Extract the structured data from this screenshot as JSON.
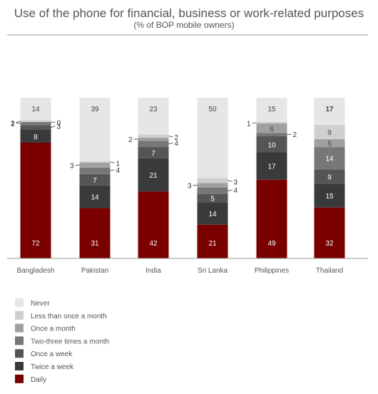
{
  "chart_data": {
    "type": "bar",
    "stacked": true,
    "title": "Use of the phone for financial, business or work-related purposes",
    "subtitle": "(% of BOP mobile owners)",
    "categories": [
      "Bangladesh",
      "Pakistan",
      "India",
      "Sri Lanka",
      "Philippines",
      "Thailand"
    ],
    "ylim": [
      0,
      100
    ],
    "grid": false,
    "legend_position": "bottom-left",
    "series": [
      {
        "name": "Daily",
        "color": "#7a0000",
        "values": [
          72,
          31,
          42,
          21,
          49,
          32
        ]
      },
      {
        "name": "Twice a week",
        "color": "#3a3a3a",
        "values": [
          8,
          14,
          21,
          14,
          17,
          15
        ]
      },
      {
        "name": "Once a week",
        "color": "#555555",
        "values": [
          3,
          7,
          7,
          5,
          10,
          9
        ]
      },
      {
        "name": "Two-three times a month",
        "color": "#777777",
        "values": [
          2,
          4,
          4,
          4,
          2,
          14
        ]
      },
      {
        "name": "Once a month",
        "color": "#a0a0a0",
        "values": [
          0,
          3,
          2,
          3,
          6,
          5
        ]
      },
      {
        "name": "Less than once a month",
        "color": "#cfcfcf",
        "values": [
          1,
          1,
          2,
          3,
          1,
          9
        ]
      },
      {
        "name": "Never",
        "color": "#e6e6e6",
        "values": [
          14,
          39,
          23,
          50,
          15,
          17
        ]
      }
    ]
  }
}
